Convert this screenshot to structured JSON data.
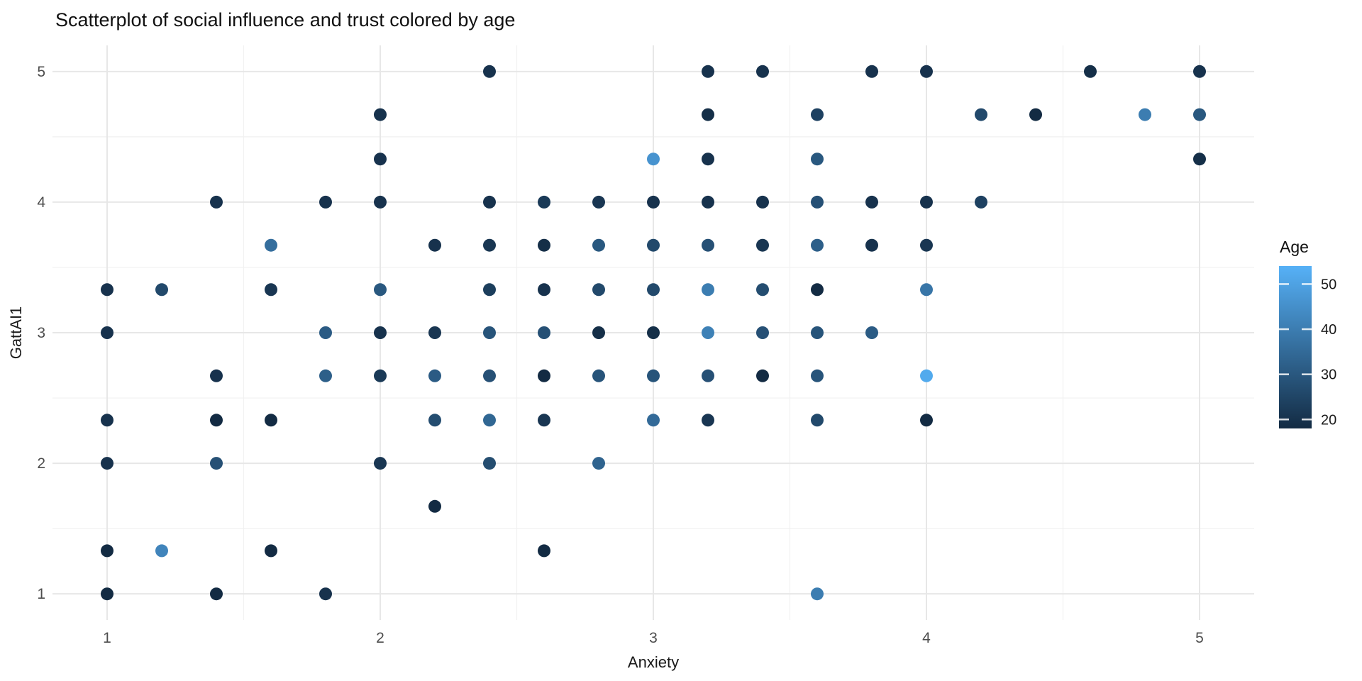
{
  "page": {
    "background": "#ffffff"
  },
  "chart_data": {
    "type": "scatter",
    "title": "Scatterplot of social influence and trust colored by age",
    "xlabel": "Anxiety",
    "ylabel": "GattAI1",
    "x_ticks": [
      1,
      2,
      3,
      4,
      5
    ],
    "y_ticks": [
      1,
      2,
      3,
      4,
      5
    ],
    "x_minor_ticks": [
      1.5,
      2.5,
      3.5,
      4.5
    ],
    "y_minor_ticks": [
      1.5,
      2.5,
      3.5,
      4.5
    ],
    "xlim": [
      0.8,
      5.2
    ],
    "ylim": [
      0.8,
      5.2
    ],
    "grid": {
      "show": true,
      "major_color": "#e7e7e7",
      "minor_color": "#f1f1f1"
    },
    "point_style": {
      "radius": 9
    },
    "color_scale": {
      "label": "Age",
      "low_color": "#132B43",
      "high_color": "#56B1F7",
      "domain": [
        18,
        54
      ],
      "ticks": [
        20,
        30,
        40,
        50
      ],
      "tick_mark_color": "#ffffff",
      "legend_position": "right"
    },
    "points_format": [
      "anxiety",
      "gattai1",
      "age"
    ],
    "points": [
      [
        2.4,
        5,
        20
      ],
      [
        3.2,
        5,
        20
      ],
      [
        3.4,
        5,
        20
      ],
      [
        3.8,
        5,
        20
      ],
      [
        4,
        5,
        20
      ],
      [
        4.6,
        5,
        19
      ],
      [
        5,
        5,
        20
      ],
      [
        2,
        4.67,
        20
      ],
      [
        3.2,
        4.67,
        19
      ],
      [
        3.6,
        4.67,
        24
      ],
      [
        4.2,
        4.67,
        26
      ],
      [
        4.4,
        4.67,
        18
      ],
      [
        4.8,
        4.67,
        40
      ],
      [
        5,
        4.67,
        30
      ],
      [
        2,
        4.33,
        20
      ],
      [
        3,
        4.33,
        46
      ],
      [
        3.2,
        4.33,
        20
      ],
      [
        3.6,
        4.33,
        30
      ],
      [
        5,
        4.33,
        19
      ],
      [
        1.4,
        4,
        20
      ],
      [
        1.8,
        4,
        20
      ],
      [
        2,
        4,
        20
      ],
      [
        2.4,
        4,
        20
      ],
      [
        2.6,
        4,
        22
      ],
      [
        2.8,
        4,
        21
      ],
      [
        3,
        4,
        20
      ],
      [
        3.2,
        4,
        20
      ],
      [
        3.4,
        4,
        20
      ],
      [
        3.6,
        4,
        28
      ],
      [
        3.8,
        4,
        20
      ],
      [
        4,
        4,
        20
      ],
      [
        4.2,
        4,
        24
      ],
      [
        1.6,
        3.67,
        36
      ],
      [
        2.2,
        3.67,
        20
      ],
      [
        2.4,
        3.67,
        21
      ],
      [
        2.6,
        3.67,
        19
      ],
      [
        2.8,
        3.67,
        30
      ],
      [
        3,
        3.67,
        26
      ],
      [
        3.2,
        3.67,
        28
      ],
      [
        3.4,
        3.67,
        21
      ],
      [
        3.6,
        3.67,
        32
      ],
      [
        3.8,
        3.67,
        20
      ],
      [
        4,
        3.67,
        21
      ],
      [
        1,
        3.33,
        20
      ],
      [
        1.2,
        3.33,
        26
      ],
      [
        1.6,
        3.33,
        21
      ],
      [
        2,
        3.33,
        30
      ],
      [
        2.4,
        3.33,
        23
      ],
      [
        2.6,
        3.33,
        20
      ],
      [
        2.8,
        3.33,
        26
      ],
      [
        3,
        3.33,
        26
      ],
      [
        3.2,
        3.33,
        40
      ],
      [
        3.4,
        3.33,
        27
      ],
      [
        3.6,
        3.33,
        18
      ],
      [
        4,
        3.33,
        38
      ],
      [
        1,
        3,
        20
      ],
      [
        1.8,
        3,
        31
      ],
      [
        2,
        3,
        20
      ],
      [
        2.2,
        3,
        21
      ],
      [
        2.4,
        3,
        29
      ],
      [
        2.6,
        3,
        28
      ],
      [
        2.8,
        3,
        19
      ],
      [
        3,
        3,
        19
      ],
      [
        3.2,
        3,
        41
      ],
      [
        3.4,
        3,
        28
      ],
      [
        3.6,
        3,
        29
      ],
      [
        3.8,
        3,
        31
      ],
      [
        1.4,
        2.67,
        20
      ],
      [
        1.8,
        2.67,
        32
      ],
      [
        2,
        2.67,
        22
      ],
      [
        2.2,
        2.67,
        31
      ],
      [
        2.4,
        2.67,
        28
      ],
      [
        2.6,
        2.67,
        18
      ],
      [
        2.8,
        2.67,
        29
      ],
      [
        3,
        2.67,
        29
      ],
      [
        3.2,
        2.67,
        28
      ],
      [
        3.4,
        2.67,
        18
      ],
      [
        3.6,
        2.67,
        29
      ],
      [
        4,
        2.67,
        52
      ],
      [
        1,
        2.33,
        20
      ],
      [
        1.4,
        2.33,
        18
      ],
      [
        1.6,
        2.33,
        18
      ],
      [
        2.2,
        2.33,
        27
      ],
      [
        2.4,
        2.33,
        34
      ],
      [
        2.6,
        2.33,
        21
      ],
      [
        3,
        2.33,
        35
      ],
      [
        3.2,
        2.33,
        21
      ],
      [
        3.6,
        2.33,
        26
      ],
      [
        4,
        2.33,
        18
      ],
      [
        1,
        2,
        20
      ],
      [
        1.4,
        2,
        28
      ],
      [
        2,
        2,
        21
      ],
      [
        2.4,
        2,
        27
      ],
      [
        2.8,
        2,
        33
      ],
      [
        2.2,
        1.67,
        18
      ],
      [
        1,
        1.33,
        18
      ],
      [
        1.2,
        1.33,
        42
      ],
      [
        1.6,
        1.33,
        18
      ],
      [
        2.6,
        1.33,
        18
      ],
      [
        1,
        1,
        18
      ],
      [
        1.4,
        1,
        18
      ],
      [
        1.8,
        1,
        20
      ],
      [
        3.6,
        1,
        40
      ]
    ]
  }
}
